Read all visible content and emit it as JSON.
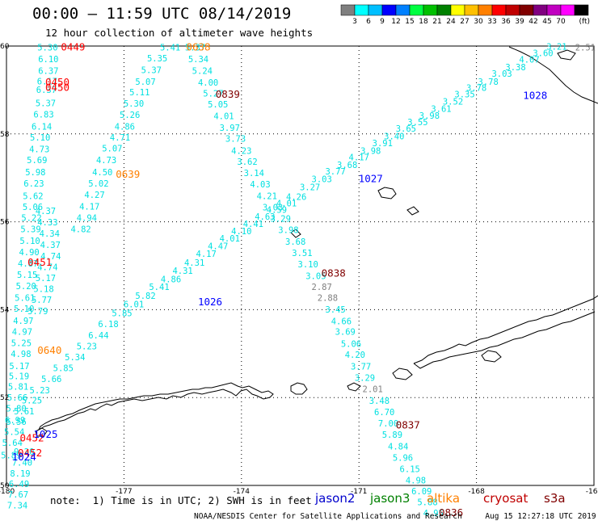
{
  "header": {
    "title": "00:00 – 11:59 UTC 08/14/2019",
    "subtitle": "12 hour collection of altimeter wave heights"
  },
  "legend": {
    "unit": "(ft)",
    "colors": [
      "#7f7f7f",
      "#00ffff",
      "#00bfff",
      "#0000ff",
      "#0080ff",
      "#00ff40",
      "#00c000",
      "#008000",
      "#ffff00",
      "#ffc000",
      "#ff8000",
      "#ff0000",
      "#c00000",
      "#800000",
      "#800080",
      "#c000c0",
      "#ff00ff",
      "#000000"
    ],
    "labels": [
      "3",
      "6",
      "9",
      "12",
      "15",
      "18",
      "21",
      "24",
      "27",
      "30",
      "33",
      "36",
      "39",
      "42",
      "45",
      "70"
    ]
  },
  "axes": {
    "lon_ticks": [
      "-180",
      "-177",
      "-174",
      "-171",
      "-168",
      "-165"
    ],
    "lat_ticks": [
      "60",
      "58",
      "56",
      "54",
      "52",
      "50"
    ],
    "lon_range": [
      -180,
      -165
    ],
    "lat_range": [
      50,
      60
    ]
  },
  "tracks": [
    {
      "name": "track-west",
      "color": "#00e0e0",
      "points": [
        {
          "lon": -178.95,
          "lat": 59.9,
          "v": "5.30"
        },
        {
          "lon": -178.93,
          "lat": 59.63,
          "v": "6.10"
        },
        {
          "lon": -178.93,
          "lat": 59.37,
          "v": "6.37"
        },
        {
          "lon": -178.96,
          "lat": 59.13,
          "v": "6.17"
        },
        {
          "lon": -178.98,
          "lat": 58.93,
          "v": "6.37"
        },
        {
          "lon": -179.0,
          "lat": 58.63,
          "v": "5.37"
        },
        {
          "lon": -179.05,
          "lat": 58.37,
          "v": "6.83"
        },
        {
          "lon": -179.1,
          "lat": 58.1,
          "v": "6.14"
        },
        {
          "lon": -179.14,
          "lat": 57.85,
          "v": "5.10"
        },
        {
          "lon": -179.16,
          "lat": 57.58,
          "v": "4.73"
        },
        {
          "lon": -179.22,
          "lat": 57.33,
          "v": "5.69"
        },
        {
          "lon": -179.26,
          "lat": 57.06,
          "v": "5.98"
        },
        {
          "lon": -179.3,
          "lat": 56.8,
          "v": "6.23"
        },
        {
          "lon": -179.32,
          "lat": 56.52,
          "v": "5.62"
        },
        {
          "lon": -179.33,
          "lat": 56.27,
          "v": "5.06"
        },
        {
          "lon": -179.36,
          "lat": 56.02,
          "v": "5.22"
        },
        {
          "lon": -179.38,
          "lat": 55.76,
          "v": "5.39"
        },
        {
          "lon": -179.4,
          "lat": 55.5,
          "v": "5.10"
        },
        {
          "lon": -179.42,
          "lat": 55.24,
          "v": "4.90"
        },
        {
          "lon": -179.45,
          "lat": 54.98,
          "v": "4.87"
        },
        {
          "lon": -179.47,
          "lat": 54.72,
          "v": "5.15"
        },
        {
          "lon": -179.5,
          "lat": 54.47,
          "v": "5.20"
        },
        {
          "lon": -179.53,
          "lat": 54.2,
          "v": "5.61"
        },
        {
          "lon": -179.55,
          "lat": 53.95,
          "v": "5.10"
        },
        {
          "lon": -179.57,
          "lat": 53.68,
          "v": "4.97"
        },
        {
          "lon": -179.6,
          "lat": 53.43,
          "v": "4.97"
        },
        {
          "lon": -179.62,
          "lat": 53.17,
          "v": "5.25"
        },
        {
          "lon": -179.63,
          "lat": 52.92,
          "v": "4.98"
        },
        {
          "lon": -179.67,
          "lat": 52.65,
          "v": "5.17"
        },
        {
          "lon": -179.68,
          "lat": 52.42,
          "v": "5.19"
        },
        {
          "lon": -179.7,
          "lat": 52.18,
          "v": "5.81"
        },
        {
          "lon": -179.72,
          "lat": 51.93,
          "v": "5.66"
        },
        {
          "lon": -179.75,
          "lat": 51.68,
          "v": "5.80"
        },
        {
          "lon": -179.78,
          "lat": 51.42,
          "v": "6.99"
        },
        {
          "lon": -179.8,
          "lat": 51.15,
          "v": "5.54"
        },
        {
          "lon": -179.85,
          "lat": 50.9,
          "v": "5.64"
        },
        {
          "lon": -179.88,
          "lat": 50.62,
          "v": "5.89"
        }
      ]
    },
    {
      "name": "track-west2",
      "color": "#00e0e0",
      "points": [
        {
          "lon": -179.0,
          "lat": 56.18,
          "v": "4.37"
        },
        {
          "lon": -178.95,
          "lat": 55.92,
          "v": "4.33"
        },
        {
          "lon": -178.9,
          "lat": 55.66,
          "v": "4.34"
        },
        {
          "lon": -178.88,
          "lat": 55.4,
          "v": "4.37"
        },
        {
          "lon": -178.87,
          "lat": 55.15,
          "v": "4.74"
        },
        {
          "lon": -178.95,
          "lat": 54.9,
          "v": "4.74"
        },
        {
          "lon": -179.0,
          "lat": 54.65,
          "v": "5.17"
        },
        {
          "lon": -179.05,
          "lat": 54.4,
          "v": "5.18"
        },
        {
          "lon": -179.1,
          "lat": 54.15,
          "v": "5.77"
        },
        {
          "lon": -179.2,
          "lat": 53.9,
          "v": "5.79"
        }
      ]
    },
    {
      "name": "track-nw-diag",
      "color": "#00e0e0",
      "points": [
        {
          "lon": -175.82,
          "lat": 59.9,
          "v": "5.41"
        },
        {
          "lon": -176.15,
          "lat": 59.65,
          "v": "5.35"
        },
        {
          "lon": -176.3,
          "lat": 59.38,
          "v": "5.37"
        },
        {
          "lon": -176.45,
          "lat": 59.12,
          "v": "5.07"
        },
        {
          "lon": -176.6,
          "lat": 58.88,
          "v": "5.11"
        },
        {
          "lon": -176.75,
          "lat": 58.62,
          "v": "5.30"
        },
        {
          "lon": -176.85,
          "lat": 58.36,
          "v": "5.26"
        },
        {
          "lon": -176.98,
          "lat": 58.1,
          "v": "4.86"
        },
        {
          "lon": -177.1,
          "lat": 57.85,
          "v": "4.71"
        },
        {
          "lon": -177.3,
          "lat": 57.6,
          "v": "5.07"
        },
        {
          "lon": -177.45,
          "lat": 57.33,
          "v": "4.73"
        },
        {
          "lon": -177.55,
          "lat": 57.06,
          "v": "4.50"
        },
        {
          "lon": -177.65,
          "lat": 56.8,
          "v": "5.02"
        },
        {
          "lon": -177.75,
          "lat": 56.54,
          "v": "4.27"
        },
        {
          "lon": -177.88,
          "lat": 56.28,
          "v": "4.17"
        },
        {
          "lon": -177.95,
          "lat": 56.02,
          "v": "4.94"
        },
        {
          "lon": -178.1,
          "lat": 55.76,
          "v": "4.82"
        }
      ]
    },
    {
      "name": "track-north-diag",
      "color": "#00e0e0",
      "points": [
        {
          "lon": -175.18,
          "lat": 59.9,
          "v": "5.37"
        },
        {
          "lon": -175.1,
          "lat": 59.63,
          "v": "5.34"
        },
        {
          "lon": -175.0,
          "lat": 59.37,
          "v": "5.24"
        },
        {
          "lon": -174.85,
          "lat": 59.1,
          "v": "4.00"
        },
        {
          "lon": -174.72,
          "lat": 58.85,
          "v": "5.27"
        },
        {
          "lon": -174.6,
          "lat": 58.6,
          "v": "5.05"
        },
        {
          "lon": -174.45,
          "lat": 58.34,
          "v": "4.01"
        },
        {
          "lon": -174.3,
          "lat": 58.07,
          "v": "3.97"
        },
        {
          "lon": -174.15,
          "lat": 57.82,
          "v": "3.73"
        },
        {
          "lon": -174.0,
          "lat": 57.55,
          "v": "4.23"
        },
        {
          "lon": -173.85,
          "lat": 57.3,
          "v": "3.62"
        },
        {
          "lon": -173.68,
          "lat": 57.04,
          "v": "3.14"
        },
        {
          "lon": -173.52,
          "lat": 56.78,
          "v": "4.03"
        },
        {
          "lon": -173.35,
          "lat": 56.52,
          "v": "4.21"
        },
        {
          "lon": -173.2,
          "lat": 56.26,
          "v": "3.03"
        },
        {
          "lon": -173.0,
          "lat": 56.0,
          "v": "3.29"
        },
        {
          "lon": -172.8,
          "lat": 55.74,
          "v": "3.98"
        },
        {
          "lon": -172.62,
          "lat": 55.48,
          "v": "3.68"
        },
        {
          "lon": -172.45,
          "lat": 55.22,
          "v": "3.51"
        },
        {
          "lon": -172.3,
          "lat": 54.96,
          "v": "3.10"
        },
        {
          "lon": -172.1,
          "lat": 54.7,
          "v": "3.05"
        },
        {
          "lon": -171.95,
          "lat": 54.45,
          "v": "2.87",
          "c": "#7f7f7f"
        },
        {
          "lon": -171.8,
          "lat": 54.2,
          "v": "2.88",
          "c": "#7f7f7f"
        },
        {
          "lon": -171.6,
          "lat": 53.93,
          "v": "3.45"
        },
        {
          "lon": -171.45,
          "lat": 53.67,
          "v": "4.66"
        },
        {
          "lon": -171.35,
          "lat": 53.43,
          "v": "3.69"
        },
        {
          "lon": -171.2,
          "lat": 53.15,
          "v": "5.06"
        },
        {
          "lon": -171.1,
          "lat": 52.9,
          "v": "4.20"
        },
        {
          "lon": -170.95,
          "lat": 52.64,
          "v": "3.77"
        },
        {
          "lon": -170.85,
          "lat": 52.38,
          "v": "3.29"
        },
        {
          "lon": -170.65,
          "lat": 52.12,
          "v": "2.01",
          "c": "#7f7f7f"
        },
        {
          "lon": -170.48,
          "lat": 51.86,
          "v": "3.48"
        },
        {
          "lon": -170.35,
          "lat": 51.6,
          "v": "6.70"
        },
        {
          "lon": -170.25,
          "lat": 51.34,
          "v": "7.00"
        },
        {
          "lon": -170.15,
          "lat": 51.08,
          "v": "5.89"
        },
        {
          "lon": -170.0,
          "lat": 50.82,
          "v": "4.84"
        },
        {
          "lon": -169.88,
          "lat": 50.56,
          "v": "5.96"
        },
        {
          "lon": -169.7,
          "lat": 50.3,
          "v": "6.15"
        },
        {
          "lon": -169.55,
          "lat": 50.05,
          "v": "4.98"
        },
        {
          "lon": -169.4,
          "lat": 49.8,
          "v": "6.09"
        },
        {
          "lon": -169.25,
          "lat": 49.55,
          "v": "5.88"
        },
        {
          "lon": -169.1,
          "lat": 49.3,
          "v": "4.95"
        }
      ]
    },
    {
      "name": "track-long-diag",
      "color": "#00e0e0",
      "points": [
        {
          "lon": -179.75,
          "lat": 51.38,
          "v": "5.56"
        },
        {
          "lon": -179.55,
          "lat": 51.62,
          "v": "5.61"
        },
        {
          "lon": -179.35,
          "lat": 51.87,
          "v": "5.25"
        },
        {
          "lon": -179.15,
          "lat": 52.1,
          "v": "5.23"
        },
        {
          "lon": -178.85,
          "lat": 52.35,
          "v": "5.66"
        },
        {
          "lon": -178.55,
          "lat": 52.6,
          "v": "5.85"
        },
        {
          "lon": -178.25,
          "lat": 52.85,
          "v": "5.34"
        },
        {
          "lon": -177.95,
          "lat": 53.1,
          "v": "5.23"
        },
        {
          "lon": -177.65,
          "lat": 53.35,
          "v": "6.44"
        },
        {
          "lon": -177.4,
          "lat": 53.6,
          "v": "6.18"
        },
        {
          "lon": -177.05,
          "lat": 53.85,
          "v": "5.85"
        },
        {
          "lon": -176.75,
          "lat": 54.05,
          "v": "6.01"
        },
        {
          "lon": -176.45,
          "lat": 54.25,
          "v": "5.82"
        },
        {
          "lon": -176.1,
          "lat": 54.45,
          "v": "5.41"
        },
        {
          "lon": -175.8,
          "lat": 54.62,
          "v": "4.86"
        },
        {
          "lon": -175.5,
          "lat": 54.82,
          "v": "4.31"
        },
        {
          "lon": -175.2,
          "lat": 55.0,
          "v": "4.31"
        },
        {
          "lon": -174.9,
          "lat": 55.2,
          "v": "4.17"
        },
        {
          "lon": -174.6,
          "lat": 55.38,
          "v": "4.47"
        },
        {
          "lon": -174.3,
          "lat": 55.55,
          "v": "4.01"
        },
        {
          "lon": -174.0,
          "lat": 55.72,
          "v": "4.10"
        },
        {
          "lon": -173.7,
          "lat": 55.88,
          "v": "4.41"
        },
        {
          "lon": -173.4,
          "lat": 56.05,
          "v": "4.63"
        },
        {
          "lon": -173.1,
          "lat": 56.2,
          "v": "4.59"
        },
        {
          "lon": -172.85,
          "lat": 56.35,
          "v": "4.01"
        },
        {
          "lon": -172.6,
          "lat": 56.5,
          "v": "4.26"
        },
        {
          "lon": -172.25,
          "lat": 56.72,
          "v": "3.27"
        },
        {
          "lon": -171.95,
          "lat": 56.9,
          "v": "3.03"
        },
        {
          "lon": -171.6,
          "lat": 57.08,
          "v": "3.77"
        },
        {
          "lon": -171.3,
          "lat": 57.22,
          "v": "3.68"
        },
        {
          "lon": -171.0,
          "lat": 57.4,
          "v": "4.17"
        },
        {
          "lon": -170.7,
          "lat": 57.55,
          "v": "3.98"
        },
        {
          "lon": -170.4,
          "lat": 57.72,
          "v": "3.91"
        },
        {
          "lon": -170.1,
          "lat": 57.88,
          "v": "3.40"
        },
        {
          "lon": -169.8,
          "lat": 58.05,
          "v": "3.65"
        },
        {
          "lon": -169.5,
          "lat": 58.2,
          "v": "3.55"
        },
        {
          "lon": -169.2,
          "lat": 58.35,
          "v": "3.98"
        },
        {
          "lon": -168.9,
          "lat": 58.5,
          "v": "3.61"
        },
        {
          "lon": -168.6,
          "lat": 58.67,
          "v": "3.52"
        },
        {
          "lon": -168.3,
          "lat": 58.83,
          "v": "3.35"
        },
        {
          "lon": -168.0,
          "lat": 58.98,
          "v": "3.78"
        },
        {
          "lon": -167.7,
          "lat": 59.12,
          "v": "3.78"
        },
        {
          "lon": -167.35,
          "lat": 59.3,
          "v": "3.03"
        },
        {
          "lon": -167.0,
          "lat": 59.45,
          "v": "3.38"
        },
        {
          "lon": -166.65,
          "lat": 59.62,
          "v": "4.07"
        },
        {
          "lon": -166.3,
          "lat": 59.77,
          "v": "3.60"
        },
        {
          "lon": -165.95,
          "lat": 59.92,
          "v": "3.21"
        }
      ]
    },
    {
      "name": "track-sw",
      "color": "#00e0e0",
      "points": [
        {
          "lon": -179.55,
          "lat": 50.7,
          "v": "9.20"
        },
        {
          "lon": -179.6,
          "lat": 50.45,
          "v": "7.40"
        },
        {
          "lon": -179.65,
          "lat": 50.2,
          "v": "8.19"
        },
        {
          "lon": -179.68,
          "lat": 49.96,
          "v": "6.49"
        },
        {
          "lon": -179.7,
          "lat": 49.72,
          "v": "7.67"
        },
        {
          "lon": -179.72,
          "lat": 49.48,
          "v": "7.34"
        }
      ]
    }
  ],
  "passes": [
    {
      "lon": -178.3,
      "lat": 59.9,
      "label": "0449",
      "color": "#ff0000"
    },
    {
      "lon": -178.7,
      "lat": 59.1,
      "label": "0450",
      "color": "#ff0000"
    },
    {
      "lon": -178.7,
      "lat": 58.98,
      "label": "0450",
      "color": "#ff0000"
    },
    {
      "lon": -175.1,
      "lat": 59.9,
      "label": "0638",
      "color": "#ff8000"
    },
    {
      "lon": -174.35,
      "lat": 58.82,
      "label": "0839",
      "color": "#800000"
    },
    {
      "lon": -176.9,
      "lat": 57.0,
      "label": "0639",
      "color": "#ff8000"
    },
    {
      "lon": -170.7,
      "lat": 56.9,
      "label": "1027",
      "color": "#0000ff"
    },
    {
      "lon": -166.5,
      "lat": 58.8,
      "label": "1028",
      "color": "#0000ff"
    },
    {
      "lon": -179.15,
      "lat": 55.0,
      "label": "0451",
      "color": "#ff0000"
    },
    {
      "lon": -171.65,
      "lat": 54.75,
      "label": "0838",
      "color": "#800000"
    },
    {
      "lon": -174.8,
      "lat": 54.1,
      "label": "1026",
      "color": "#0000ff"
    },
    {
      "lon": -178.9,
      "lat": 53.0,
      "label": "0640",
      "color": "#ff8000"
    },
    {
      "lon": -179.35,
      "lat": 51.0,
      "label": "0452",
      "color": "#ff0000"
    },
    {
      "lon": -179.0,
      "lat": 51.08,
      "label": "1025",
      "color": "#0000ff"
    },
    {
      "lon": -179.4,
      "lat": 50.66,
      "label": "0452",
      "color": "#ff0000"
    },
    {
      "lon": -179.55,
      "lat": 50.57,
      "label": "1024",
      "color": "#0000ff"
    },
    {
      "lon": -169.75,
      "lat": 51.3,
      "label": "0837",
      "color": "#800000"
    },
    {
      "lon": -168.65,
      "lat": 49.3,
      "label": "0836",
      "color": "#800000"
    }
  ],
  "corner_value": {
    "lon": -165.0,
    "lat": 59.97,
    "v": "2.51"
  },
  "footer": {
    "note": "note:  1) Time is in UTC; 2) SWH is in feet",
    "satellites": [
      {
        "name": "jason2",
        "color": "#0000cc"
      },
      {
        "name": "jason3",
        "color": "#008000"
      },
      {
        "name": "altika",
        "color": "#ff8000"
      },
      {
        "name": "cryosat",
        "color": "#c00000"
      },
      {
        "name": "s3a",
        "color": "#800000"
      }
    ],
    "credit": "NOAA/NESDIS Center for Satellite Applications and Research     Aug 15 12:27:18 UTC 2019"
  }
}
